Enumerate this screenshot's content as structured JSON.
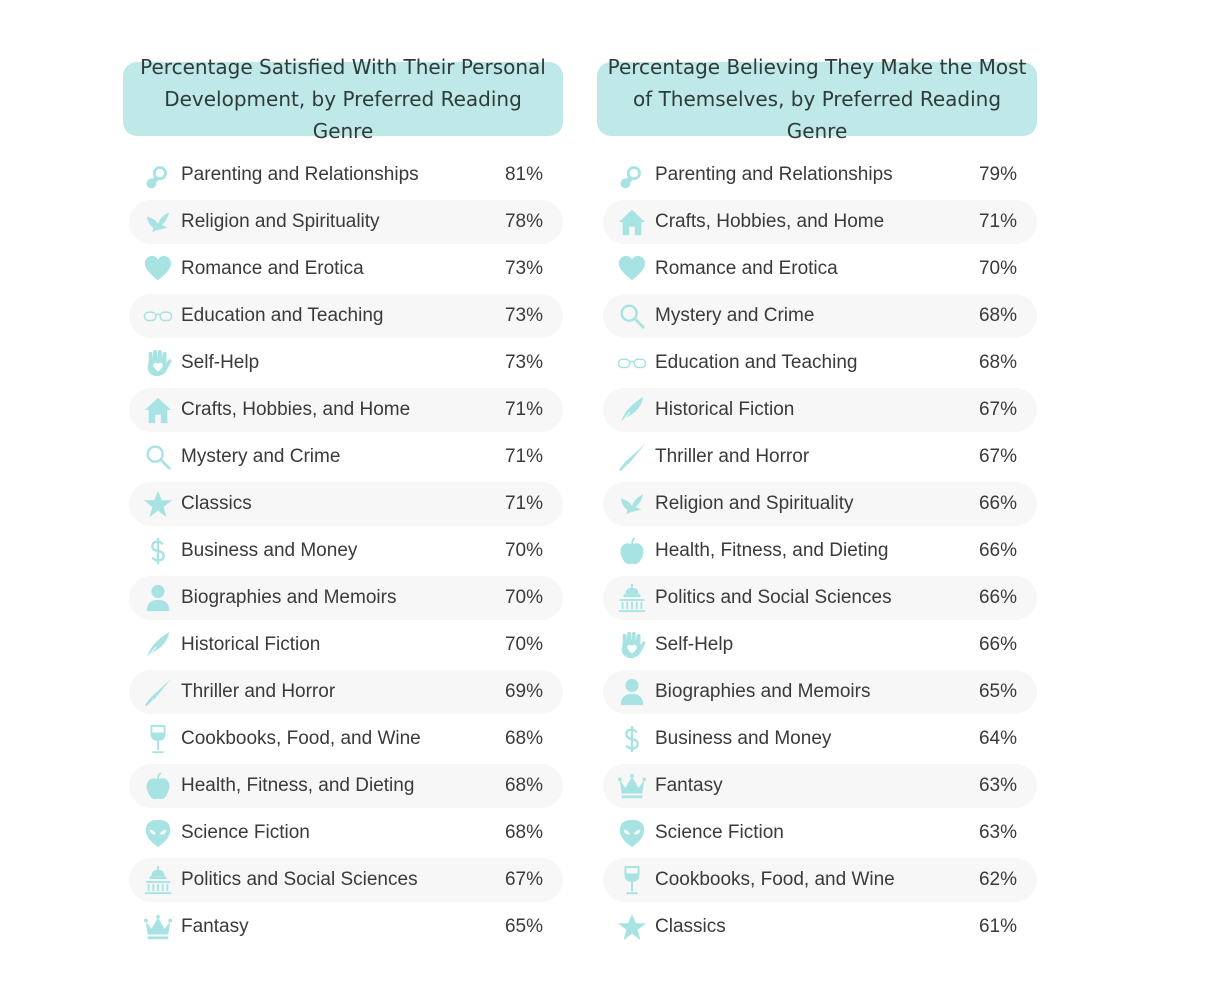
{
  "colors": {
    "accent": "#bfe9e9",
    "icon": "#a8e3e3",
    "row_shade": "#f7f7f7",
    "text": "#3a3a3a"
  },
  "chart_data": [
    {
      "type": "table",
      "title": "Percentage Satisfied With Their Personal Development, by Preferred Reading Genre",
      "rows": [
        {
          "icon": "pacifier-icon",
          "label": "Parenting and Relationships",
          "value": "81%"
        },
        {
          "icon": "dove-icon",
          "label": "Religion and Spirituality",
          "value": "78%"
        },
        {
          "icon": "heart-icon",
          "label": "Romance and Erotica",
          "value": "73%"
        },
        {
          "icon": "glasses-icon",
          "label": "Education and Teaching",
          "value": "73%"
        },
        {
          "icon": "hand-heart-icon",
          "label": "Self-Help",
          "value": "73%"
        },
        {
          "icon": "house-icon",
          "label": "Crafts, Hobbies, and Home",
          "value": "71%"
        },
        {
          "icon": "magnifier-icon",
          "label": "Mystery and Crime",
          "value": "71%"
        },
        {
          "icon": "star-icon",
          "label": "Classics",
          "value": "71%"
        },
        {
          "icon": "dollar-icon",
          "label": "Business and Money",
          "value": "70%"
        },
        {
          "icon": "person-icon",
          "label": "Biographies and Memoirs",
          "value": "70%"
        },
        {
          "icon": "quill-icon",
          "label": "Historical Fiction",
          "value": "70%"
        },
        {
          "icon": "knife-icon",
          "label": "Thriller and Horror",
          "value": "69%"
        },
        {
          "icon": "wine-glass-icon",
          "label": "Cookbooks, Food, and Wine",
          "value": "68%"
        },
        {
          "icon": "apple-icon",
          "label": "Health, Fitness, and Dieting",
          "value": "68%"
        },
        {
          "icon": "alien-icon",
          "label": "Science Fiction",
          "value": "68%"
        },
        {
          "icon": "capitol-icon",
          "label": "Politics and Social Sciences",
          "value": "67%"
        },
        {
          "icon": "crown-icon",
          "label": "Fantasy",
          "value": "65%"
        }
      ]
    },
    {
      "type": "table",
      "title": "Percentage Believing They Make the Most of Themselves, by Preferred Reading Genre",
      "rows": [
        {
          "icon": "pacifier-icon",
          "label": "Parenting and Relationships",
          "value": "79%"
        },
        {
          "icon": "house-icon",
          "label": "Crafts, Hobbies, and Home",
          "value": "71%"
        },
        {
          "icon": "heart-icon",
          "label": "Romance and Erotica",
          "value": "70%"
        },
        {
          "icon": "magnifier-icon",
          "label": "Mystery and Crime",
          "value": "68%"
        },
        {
          "icon": "glasses-icon",
          "label": "Education and Teaching",
          "value": "68%"
        },
        {
          "icon": "quill-icon",
          "label": "Historical Fiction",
          "value": "67%"
        },
        {
          "icon": "knife-icon",
          "label": "Thriller and Horror",
          "value": "67%"
        },
        {
          "icon": "dove-icon",
          "label": "Religion and Spirituality",
          "value": "66%"
        },
        {
          "icon": "apple-icon",
          "label": "Health, Fitness, and Dieting",
          "value": "66%"
        },
        {
          "icon": "capitol-icon",
          "label": "Politics and Social Sciences",
          "value": "66%"
        },
        {
          "icon": "hand-heart-icon",
          "label": "Self-Help",
          "value": "66%"
        },
        {
          "icon": "person-icon",
          "label": "Biographies and Memoirs",
          "value": "65%"
        },
        {
          "icon": "dollar-icon",
          "label": "Business and Money",
          "value": "64%"
        },
        {
          "icon": "crown-icon",
          "label": "Fantasy",
          "value": "63%"
        },
        {
          "icon": "alien-icon",
          "label": "Science Fiction",
          "value": "63%"
        },
        {
          "icon": "wine-glass-icon",
          "label": "Cookbooks, Food, and Wine",
          "value": "62%"
        },
        {
          "icon": "star-icon",
          "label": "Classics",
          "value": "61%"
        }
      ]
    }
  ]
}
